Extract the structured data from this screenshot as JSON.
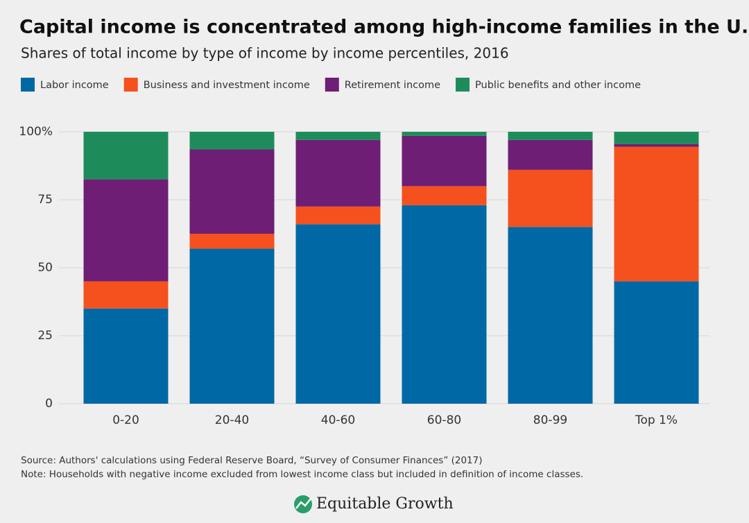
{
  "chart_data": {
    "type": "stacked_bar",
    "title": "Capital income is concentrated among high-income families in the U.S.",
    "subtitle": "Shares of total income by type of income by income percentiles, 2016",
    "categories": [
      "0-20",
      "20-40",
      "40-60",
      "60-80",
      "80-99",
      "Top 1%"
    ],
    "series": [
      {
        "name": "Labor income",
        "color": "#0068a5",
        "values": [
          35,
          57,
          66,
          73,
          65,
          45
        ]
      },
      {
        "name": "Business and investment income",
        "color": "#f4511e",
        "values": [
          10,
          5.5,
          6.5,
          7,
          21,
          49.5
        ]
      },
      {
        "name": "Retirement income",
        "color": "#6e1e74",
        "values": [
          37.5,
          31,
          24.5,
          18.5,
          11,
          1
        ]
      },
      {
        "name": "Public benefits and other income",
        "color": "#1e8c5a",
        "values": [
          17.5,
          6.5,
          3,
          1.5,
          3,
          4.5
        ]
      }
    ],
    "ylim": [
      0,
      100
    ],
    "yticks": [
      0,
      25,
      50,
      75,
      {
        "value": 100,
        "label": "100%"
      }
    ],
    "grid": true,
    "legend": "top-left",
    "source": "Source: Authors' calculations using Federal Reserve Board, “Survey of Consumer Finances” (2017)",
    "note": "Note: Households with negative income excluded from lowest income class but included in definition of income classes.",
    "brand": "Equitable Growth"
  }
}
